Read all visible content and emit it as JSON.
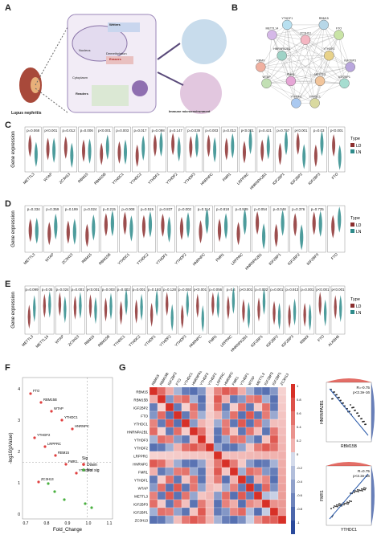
{
  "panels": {
    "A": {
      "label": "A",
      "kidney_caption": "Lupus nephritis",
      "inner_labels": [
        "Writers",
        "Nucleus",
        "Demethylation",
        "Erasers",
        "Cytoplasm",
        "Readers",
        "Immune microenvironment"
      ]
    },
    "B": {
      "label": "B",
      "nodes": [
        "ZC3H13",
        "RBM15",
        "FTO",
        "YTHDF3",
        "IGF2BP3",
        "IGF2BP1",
        "METTL3",
        "YTHDC1",
        "YTHDF2",
        "FMR1",
        "WTAP",
        "RBMX",
        "HNRNPA2B1",
        "METTL14",
        "YTHDF1"
      ]
    },
    "C": {
      "label": "C",
      "ylabel": "Gene expression",
      "legend_title": "Type",
      "legend_items": [
        "LD",
        "LN"
      ],
      "genes": [
        "METTL3",
        "WTAP",
        "ZC3H13",
        "RBM15",
        "RBM15B",
        "YTHDC1",
        "YTHDC2",
        "YTHDF1",
        "YTHDF2",
        "YTHDF3",
        "HNRNPC",
        "FMR1",
        "LRPPRC",
        "HNRNPA2B1",
        "IGF2BP1",
        "IGF2BP2",
        "IGF2BP3",
        "FTO"
      ],
      "pvalues": [
        "p=0.068",
        "p<0.001",
        "p=0.012",
        "p=0.006",
        "p<0.001",
        "p=0.003",
        "p=0.017",
        "p=0.098",
        "p=0.147",
        "p=0.039",
        "p=0.003",
        "p=0.012",
        "p<0.001",
        "p=0.421",
        "p=0.757",
        "p<0.001",
        "p=0.03",
        "p<0.001"
      ]
    },
    "D": {
      "label": "D",
      "ylabel": "Gene expression",
      "legend_title": "Type",
      "legend_items": [
        "LD",
        "LN"
      ],
      "genes": [
        "METTL3",
        "WTAP",
        "ZC3H13",
        "RBM15",
        "RBM15B",
        "YTHDC1",
        "YTHDC2",
        "YTHDF1",
        "YTHDF2",
        "HNRNPC",
        "FMR1",
        "LRPPRC",
        "HNRNPA2B1",
        "IGF2BP1",
        "IGF2BP2",
        "IGF2BP3",
        "FTO"
      ],
      "pvalues": [
        "p=0.334",
        "p=0.359",
        "p=0.199",
        "p=0.024",
        "p=0.215",
        "p=0.008",
        "p=0.515",
        "p=0.837",
        "p=0.002",
        "p=0.114",
        "p=0.818",
        "p=0.939",
        "p=0.054",
        "p=0.048",
        "p=0.376",
        "p=0.725",
        ""
      ]
    },
    "E": {
      "label": "E",
      "ylabel": "Gene expression",
      "legend_title": "Type",
      "legend_items": [
        "LD",
        "LN"
      ],
      "genes": [
        "METTL3",
        "METTL14",
        "WTAP",
        "ZC3H13",
        "RBM15",
        "RBM15B",
        "YTHDC1",
        "YTHDC2",
        "YTHDF1",
        "YTHDF2",
        "YTHDF3",
        "HNRNPC",
        "FMR1",
        "LRPPRC",
        "HNRNPA2B1",
        "IGF2BP1",
        "IGF2BP2",
        "IGF2BP3",
        "RBMX",
        "FTO",
        "ALKBH5"
      ],
      "pvalues": [
        "p=0.099",
        "p=0.05",
        "p=0.024",
        "p=0.001",
        "p<0.001",
        "p=0.003",
        "p=0.002",
        "p=0.001",
        "p=0.193",
        "p=0.128",
        "p=0.092",
        "p<0.001",
        "p=0.056",
        "p=0.4",
        "p<0.001",
        "p=0.002",
        "p=0.001",
        "p=0.913",
        "p=0.001",
        "p<0.001",
        "p<0.001"
      ]
    },
    "F": {
      "label": "F",
      "xlabel": "Fold_Change",
      "ylabel": "-log10(pValue)",
      "legend_title": "Sig",
      "legend_items": [
        "Down",
        "Not sig"
      ],
      "legend_colors": [
        "#e04040",
        "#4ab040"
      ],
      "xticks": [
        "0.7",
        "0.8",
        "0.9",
        "1.0",
        "1.1"
      ],
      "yticks": [
        "0",
        "1",
        "2",
        "3",
        "4"
      ],
      "point_labels": [
        "FTO",
        "RBM15B",
        "WTAP",
        "YTHDC1",
        "HNRNPC",
        "YTHDF2",
        "LRPPRC",
        "RBM15",
        "FMR1",
        "YTHDF3",
        "ZC3H13"
      ]
    },
    "G": {
      "label": "G",
      "genes": [
        "RBM15",
        "RBM15B",
        "IGF2BP2",
        "FTO",
        "YTHDC1",
        "HNRNPA2B1",
        "YTHDF3",
        "YTHDF2",
        "LRPPRC",
        "HNRNPC",
        "FMR1",
        "YTHDF1",
        "WTAP",
        "METTL3",
        "IGF2BP3",
        "IGF2BP1",
        "ZC3H13"
      ],
      "colorbar_ticks": [
        "1",
        "0.8",
        "0.6",
        "0.4",
        "0.2",
        "0",
        "-0.2",
        "-0.4",
        "-0.6",
        "-0.8",
        "-1"
      ],
      "scatter1": {
        "xlabel": "RBM15B",
        "ylabel": "HNRNPA2B1",
        "stat_r": "R=-0.75",
        "stat_p": "p<2.2e-16"
      },
      "scatter2": {
        "xlabel": "YTHDC1",
        "ylabel": "FMR1",
        "stat_r": "R=0.75",
        "stat_p": "p<2.2e-16"
      }
    }
  },
  "colors": {
    "LD": "#8b2f2f",
    "LN": "#2e8b8b",
    "down": "#e04040",
    "notsig": "#4ab040",
    "heat_pos": "#d73027",
    "heat_neg": "#2a4a9c"
  }
}
